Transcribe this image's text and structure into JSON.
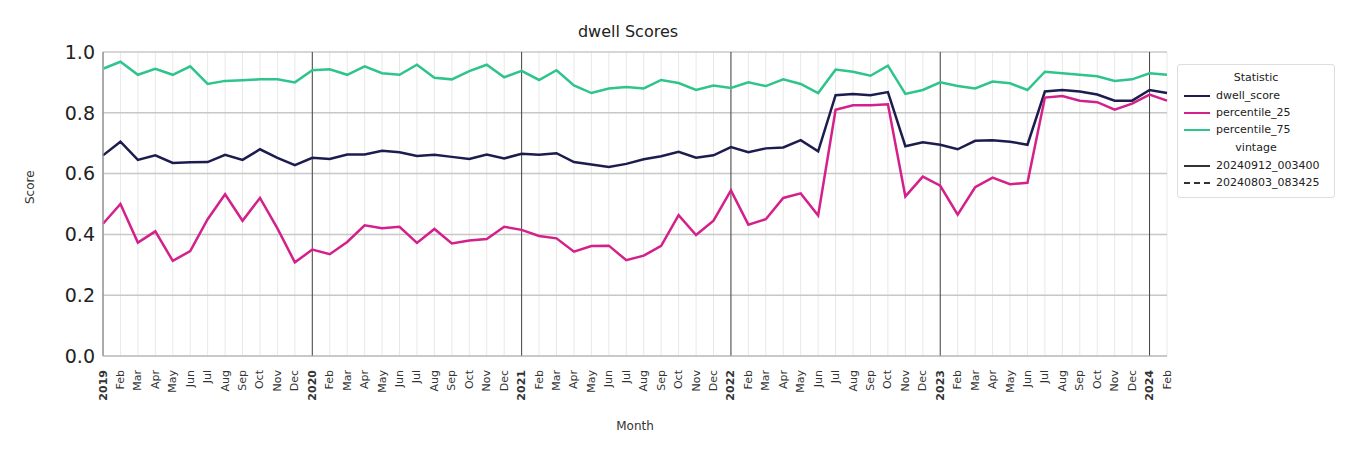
{
  "chart_data": {
    "type": "line",
    "title": "dwell Scores",
    "x_label": "Month",
    "y_label": "Score",
    "categories": [
      "2019",
      "Feb",
      "Mar",
      "Apr",
      "May",
      "Jun",
      "Jul",
      "Aug",
      "Sep",
      "Oct",
      "Nov",
      "Dec",
      "2020",
      "Feb",
      "Mar",
      "Apr",
      "May",
      "Jun",
      "Jul",
      "Aug",
      "Sep",
      "Oct",
      "Nov",
      "Dec",
      "2021",
      "Feb",
      "Mar",
      "Apr",
      "May",
      "Jun",
      "Jul",
      "Aug",
      "Sep",
      "Oct",
      "Nov",
      "Dec",
      "2022",
      "Feb",
      "Mar",
      "Apr",
      "May",
      "Jun",
      "Jul",
      "Aug",
      "Sep",
      "Oct",
      "Nov",
      "Dec",
      "2023",
      "Feb",
      "Mar",
      "Apr",
      "May",
      "Jun",
      "Jul",
      "Aug",
      "Sep",
      "Oct",
      "Nov",
      "Dec",
      "2024",
      "Feb"
    ],
    "series": [
      {
        "name": "dwell_score",
        "color": "#1c1c4e",
        "line_style": "solid",
        "values": [
          0.66,
          0.705,
          0.645,
          0.66,
          0.635,
          0.637,
          0.638,
          0.662,
          0.645,
          0.68,
          0.652,
          0.628,
          0.652,
          0.648,
          0.663,
          0.663,
          0.675,
          0.67,
          0.658,
          0.662,
          0.655,
          0.648,
          0.663,
          0.65,
          0.665,
          0.662,
          0.667,
          0.638,
          0.63,
          0.622,
          0.632,
          0.647,
          0.657,
          0.672,
          0.652,
          0.66,
          0.687,
          0.67,
          0.683,
          0.686,
          0.71,
          0.673,
          0.858,
          0.862,
          0.858,
          0.868,
          0.69,
          0.703,
          0.695,
          0.68,
          0.708,
          0.71,
          0.705,
          0.695,
          0.87,
          0.875,
          0.87,
          0.86,
          0.84,
          0.84,
          0.875,
          0.865
        ]
      },
      {
        "name": "percentile_25",
        "color": "#d4208a",
        "line_style": "solid",
        "values": [
          0.435,
          0.5,
          0.373,
          0.41,
          0.313,
          0.345,
          0.45,
          0.532,
          0.445,
          0.52,
          0.42,
          0.308,
          0.35,
          0.335,
          0.375,
          0.43,
          0.42,
          0.425,
          0.372,
          0.418,
          0.37,
          0.38,
          0.385,
          0.425,
          0.415,
          0.395,
          0.387,
          0.343,
          0.362,
          0.363,
          0.315,
          0.33,
          0.362,
          0.463,
          0.398,
          0.445,
          0.545,
          0.432,
          0.45,
          0.52,
          0.535,
          0.462,
          0.81,
          0.825,
          0.825,
          0.828,
          0.525,
          0.59,
          0.56,
          0.465,
          0.555,
          0.587,
          0.565,
          0.57,
          0.85,
          0.855,
          0.84,
          0.835,
          0.81,
          0.83,
          0.86,
          0.84
        ]
      },
      {
        "name": "percentile_75",
        "color": "#2ec48c",
        "line_style": "solid",
        "values": [
          0.945,
          0.968,
          0.925,
          0.945,
          0.925,
          0.953,
          0.895,
          0.905,
          0.907,
          0.91,
          0.91,
          0.9,
          0.94,
          0.943,
          0.925,
          0.953,
          0.93,
          0.925,
          0.958,
          0.915,
          0.91,
          0.937,
          0.958,
          0.917,
          0.938,
          0.908,
          0.94,
          0.89,
          0.865,
          0.88,
          0.885,
          0.88,
          0.908,
          0.898,
          0.875,
          0.89,
          0.882,
          0.9,
          0.888,
          0.91,
          0.895,
          0.865,
          0.942,
          0.935,
          0.922,
          0.955,
          0.862,
          0.875,
          0.9,
          0.888,
          0.88,
          0.903,
          0.897,
          0.875,
          0.935,
          0.93,
          0.925,
          0.92,
          0.905,
          0.91,
          0.93,
          0.925
        ]
      }
    ],
    "legend": "upper right",
    "legend_title": "Statistic",
    "vintage": {
      "title": "vintage",
      "items": [
        {
          "name": "20240912_003400",
          "line_style": "solid"
        },
        {
          "name": "20240803_083425",
          "line_style": "dashed"
        }
      ]
    },
    "ylim": [
      0,
      1
    ],
    "yticks": [
      {
        "value": 0,
        "label": "0.0"
      },
      {
        "value": 0.2,
        "label": "0.2"
      },
      {
        "value": 0.4,
        "label": "0.4"
      },
      {
        "value": 0.6,
        "label": "0.6"
      },
      {
        "value": 0.8,
        "label": "0.8"
      },
      {
        "value": 1,
        "label": "1.0"
      }
    ],
    "grid": true
  }
}
